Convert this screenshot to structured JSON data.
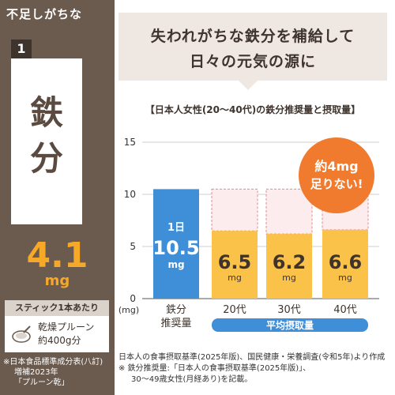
{
  "sidebar": {
    "heading": "不足しがちな",
    "rank": "1",
    "nutrient": "鉄分",
    "amount": "4.1",
    "unit": "mg",
    "per_label": "スティック1本あたり",
    "per_text": [
      "乾燥プルーン",
      "約400g分"
    ],
    "source": [
      "※日本食品標準成分表(八訂)",
      "増補2023年",
      "「プルーン乾」"
    ]
  },
  "headline": [
    "失われがちな鉄分を補給して",
    "日々の元気の源に"
  ],
  "chart_title": "【日本人女性(20～40代)の鉄分推奨量と摂取量】",
  "callout": [
    "約4mg",
    "足りない!"
  ],
  "footnotes": [
    "日本人の食事摂取基準(2025年版)、国民健康・栄養調査(令和5年)より作成",
    "※ 鉄分推奨量:「日本人の食事摂取基準(2025年版)」、",
    "30～49歳女性(月経あり)を記載。"
  ],
  "colors": {
    "brown": "#6b5a4e",
    "recommended_bar": "#3f8fd8",
    "intake_bar": "#fbc24a",
    "gap": "#fdecee",
    "gap_border": "#e58a8a",
    "callout": "#f07b2e",
    "average_band": "#3f8fd8"
  },
  "chart_data": {
    "type": "bar",
    "y_unit": "(mg)",
    "ylim": [
      0,
      15
    ],
    "yticks": [
      0,
      5,
      10,
      15
    ],
    "grid": true,
    "recommended": {
      "category": "鉄分推奨量",
      "value": 10.5,
      "label_prefix": "1日",
      "label": "10.5",
      "unit": "mg"
    },
    "intake_group_label": "平均摂取量",
    "intake": [
      {
        "category": "20代",
        "value": 6.5,
        "label": "6.5",
        "unit": "mg"
      },
      {
        "category": "30代",
        "value": 6.2,
        "label": "6.2",
        "unit": "mg"
      },
      {
        "category": "40代",
        "value": 6.6,
        "label": "6.6",
        "unit": "mg"
      }
    ]
  }
}
